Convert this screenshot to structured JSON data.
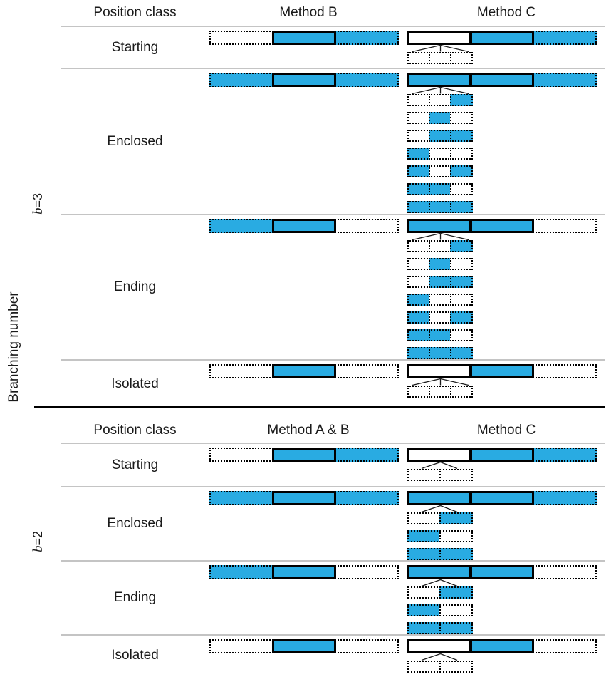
{
  "figure": {
    "y_axis_label": "Branching number",
    "colors": {
      "bar_fill": "#29ABE2",
      "bar_empty": "#FFFFFF",
      "bar_border": "#000000",
      "row_separator": "#C4C4C4",
      "panel_divider": "#000000"
    },
    "panels": [
      {
        "name": "b3",
        "branch_label": {
          "var": "b",
          "rest": "=3"
        },
        "headers": [
          "Position class",
          "Method B",
          "Method C"
        ],
        "sub_segments": 3,
        "rows": [
          {
            "label": "Starting",
            "left_bar": [
              {
                "border": "dotted",
                "filled": false
              },
              {
                "border": "solid",
                "filled": true
              },
              {
                "border": "dotted",
                "filled": true
              }
            ],
            "right_bar": [
              {
                "border": "solid",
                "filled": false
              },
              {
                "border": "solid",
                "filled": true
              },
              {
                "border": "dotted",
                "filled": true
              }
            ],
            "sub_bars": [
              [
                false,
                false,
                false
              ]
            ]
          },
          {
            "label": "Enclosed",
            "left_bar": [
              {
                "border": "dotted",
                "filled": true
              },
              {
                "border": "solid",
                "filled": true
              },
              {
                "border": "dotted",
                "filled": true
              }
            ],
            "right_bar": [
              {
                "border": "solid",
                "filled": true
              },
              {
                "border": "solid",
                "filled": true
              },
              {
                "border": "dotted",
                "filled": true
              }
            ],
            "sub_bars": [
              [
                false,
                false,
                true
              ],
              [
                false,
                true,
                false
              ],
              [
                false,
                true,
                true
              ],
              [
                true,
                false,
                false
              ],
              [
                true,
                false,
                true
              ],
              [
                true,
                true,
                false
              ],
              [
                true,
                true,
                true
              ]
            ]
          },
          {
            "label": "Ending",
            "left_bar": [
              {
                "border": "dotted",
                "filled": true
              },
              {
                "border": "solid",
                "filled": true
              },
              {
                "border": "dotted",
                "filled": false
              }
            ],
            "right_bar": [
              {
                "border": "solid",
                "filled": true
              },
              {
                "border": "solid",
                "filled": true
              },
              {
                "border": "dotted",
                "filled": false
              }
            ],
            "sub_bars": [
              [
                false,
                false,
                true
              ],
              [
                false,
                true,
                false
              ],
              [
                false,
                true,
                true
              ],
              [
                true,
                false,
                false
              ],
              [
                true,
                false,
                true
              ],
              [
                true,
                true,
                false
              ],
              [
                true,
                true,
                true
              ]
            ]
          },
          {
            "label": "Isolated",
            "left_bar": [
              {
                "border": "dotted",
                "filled": false
              },
              {
                "border": "solid",
                "filled": true
              },
              {
                "border": "dotted",
                "filled": false
              }
            ],
            "right_bar": [
              {
                "border": "solid",
                "filled": false
              },
              {
                "border": "solid",
                "filled": true
              },
              {
                "border": "dotted",
                "filled": false
              }
            ],
            "sub_bars": [
              [
                false,
                false,
                false
              ]
            ]
          }
        ]
      },
      {
        "name": "b2",
        "branch_label": {
          "var": "b",
          "rest": "=2"
        },
        "headers": [
          "Position class",
          "Method A & B",
          "Method C"
        ],
        "sub_segments": 2,
        "rows": [
          {
            "label": "Starting",
            "left_bar": [
              {
                "border": "dotted",
                "filled": false
              },
              {
                "border": "solid",
                "filled": true
              },
              {
                "border": "dotted",
                "filled": true
              }
            ],
            "right_bar": [
              {
                "border": "solid",
                "filled": false
              },
              {
                "border": "solid",
                "filled": true
              },
              {
                "border": "dotted",
                "filled": true
              }
            ],
            "sub_bars": [
              [
                false,
                false
              ]
            ]
          },
          {
            "label": "Enclosed",
            "left_bar": [
              {
                "border": "dotted",
                "filled": true
              },
              {
                "border": "solid",
                "filled": true
              },
              {
                "border": "dotted",
                "filled": true
              }
            ],
            "right_bar": [
              {
                "border": "solid",
                "filled": true
              },
              {
                "border": "solid",
                "filled": true
              },
              {
                "border": "dotted",
                "filled": true
              }
            ],
            "sub_bars": [
              [
                false,
                true
              ],
              [
                true,
                false
              ],
              [
                true,
                true
              ]
            ]
          },
          {
            "label": "Ending",
            "left_bar": [
              {
                "border": "dotted",
                "filled": true
              },
              {
                "border": "solid",
                "filled": true
              },
              {
                "border": "dotted",
                "filled": false
              }
            ],
            "right_bar": [
              {
                "border": "solid",
                "filled": true
              },
              {
                "border": "solid",
                "filled": true
              },
              {
                "border": "dotted",
                "filled": false
              }
            ],
            "sub_bars": [
              [
                false,
                true
              ],
              [
                true,
                false
              ],
              [
                true,
                true
              ]
            ]
          },
          {
            "label": "Isolated",
            "left_bar": [
              {
                "border": "dotted",
                "filled": false
              },
              {
                "border": "solid",
                "filled": true
              },
              {
                "border": "dotted",
                "filled": false
              }
            ],
            "right_bar": [
              {
                "border": "solid",
                "filled": false
              },
              {
                "border": "solid",
                "filled": true
              },
              {
                "border": "dotted",
                "filled": false
              }
            ],
            "sub_bars": [
              [
                false,
                false
              ]
            ]
          }
        ]
      }
    ]
  }
}
